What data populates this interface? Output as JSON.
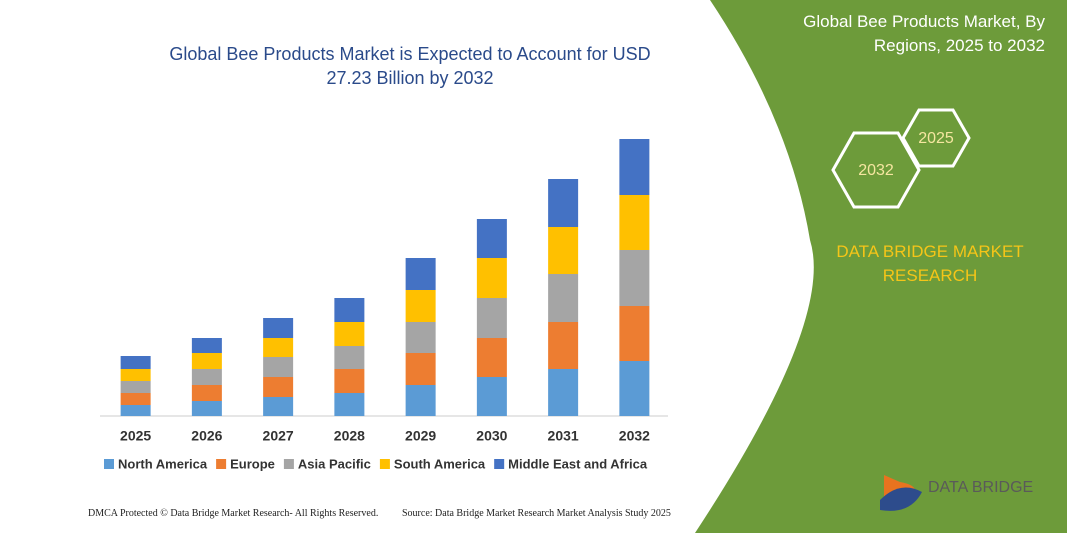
{
  "chart_data": {
    "type": "stacked_bar",
    "title": "Global Bee Products Market is Expected to Account for USD 27.23 Billion by 2032",
    "categories": [
      "2025",
      "2026",
      "2027",
      "2028",
      "2029",
      "2030",
      "2031",
      "2032"
    ],
    "series": [
      {
        "name": "North America",
        "color": "#5b9bd5",
        "values": [
          11,
          15,
          19,
          23,
          31,
          39,
          47,
          55
        ]
      },
      {
        "name": "Europe",
        "color": "#ed7d31",
        "values": [
          12,
          16,
          20,
          24,
          32,
          39,
          47,
          55
        ]
      },
      {
        "name": "Asia Pacific",
        "color": "#a5a5a5",
        "values": [
          12,
          16,
          20,
          23,
          31,
          40,
          48,
          56
        ]
      },
      {
        "name": "South America",
        "color": "#ffc000",
        "values": [
          12,
          16,
          19,
          24,
          32,
          40,
          47,
          55
        ]
      },
      {
        "name": "Middle East and Africa",
        "color": "#4472c4",
        "values": [
          13,
          15,
          20,
          24,
          32,
          39,
          48,
          56
        ]
      }
    ]
  },
  "panel": {
    "title": "Global Bee Products Market, By Regions, 2025 to 2032",
    "hex_labels": [
      "2032",
      "2025"
    ],
    "brand": "DATA BRIDGE MARKET RESEARCH"
  },
  "footer": {
    "left": "DMCA Protected © Data Bridge Market Research-  All Rights Reserved.",
    "right": "Source: Data Bridge Market Research  Market Analysis Study 2025"
  },
  "logo": "DATA BRIDGE"
}
